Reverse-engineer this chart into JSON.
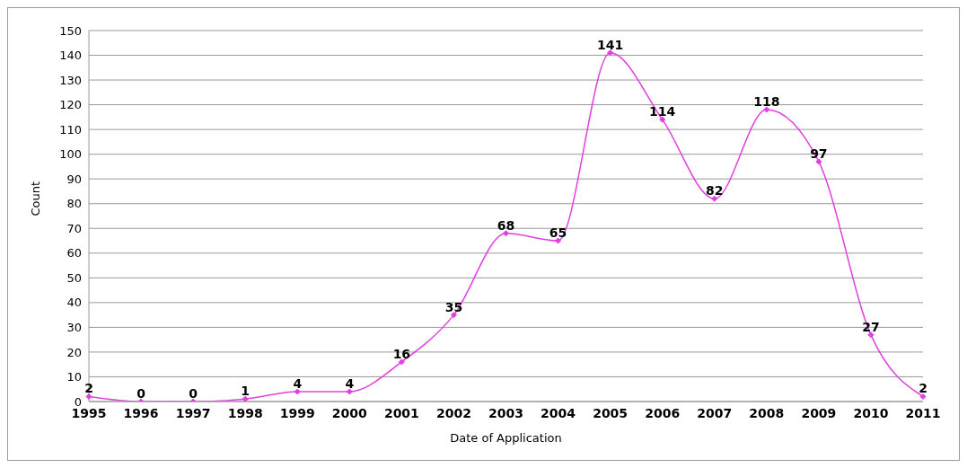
{
  "chart_data": {
    "type": "line",
    "xlabel": "Date of Application",
    "ylabel": "Count",
    "categories": [
      "1995",
      "1996",
      "1997",
      "1998",
      "1999",
      "2000",
      "2001",
      "2002",
      "2003",
      "2004",
      "2005",
      "2006",
      "2007",
      "2008",
      "2009",
      "2010",
      "2011"
    ],
    "series": [
      {
        "color": "#e040e0",
        "values": [
          2,
          0,
          0,
          1,
          4,
          4,
          16,
          35,
          68,
          65,
          141,
          114,
          82,
          118,
          97,
          27,
          2
        ]
      }
    ],
    "ylim": [
      0,
      150
    ],
    "yticks": [
      0,
      10,
      20,
      30,
      40,
      50,
      60,
      70,
      80,
      90,
      100,
      110,
      120,
      130,
      140,
      150
    ],
    "grid": "y",
    "legend": false,
    "marker": "diamond",
    "line_style": "solid",
    "data_labels": true
  }
}
